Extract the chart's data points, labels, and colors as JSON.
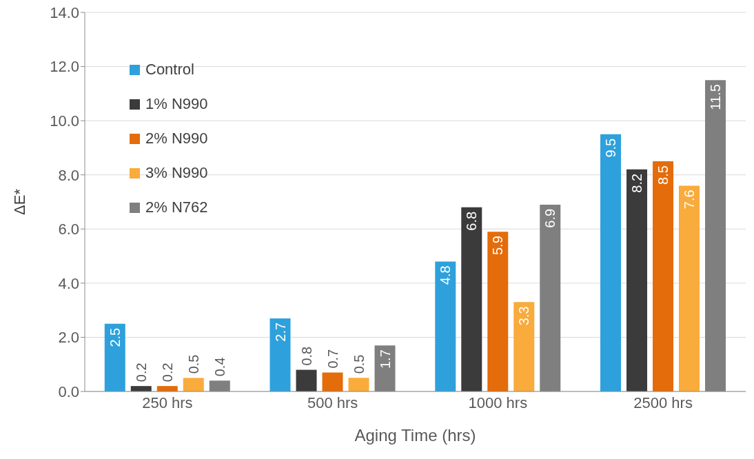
{
  "chart_data": {
    "type": "bar",
    "xlabel": "Aging Time (hrs)",
    "ylabel": "ΔE*",
    "categories": [
      "250 hrs",
      "500 hrs",
      "1000 hrs",
      "2500 hrs"
    ],
    "series": [
      {
        "name": "Control",
        "color": "#2ea1dc",
        "values": [
          2.5,
          2.7,
          4.8,
          9.5
        ]
      },
      {
        "name": "1% N990",
        "color": "#3b3b3b",
        "values": [
          0.2,
          0.8,
          6.8,
          8.2
        ]
      },
      {
        "name": "2% N990",
        "color": "#e46c0a",
        "values": [
          0.2,
          0.7,
          5.9,
          8.5
        ]
      },
      {
        "name": "3% N990",
        "color": "#f9ab3c",
        "values": [
          0.5,
          0.5,
          3.3,
          7.6
        ]
      },
      {
        "name": "2% N762",
        "color": "#7f7f7f",
        "values": [
          0.4,
          1.7,
          6.9,
          11.5
        ]
      }
    ],
    "ylim": [
      0,
      14
    ],
    "yticks": [
      {
        "value": 0,
        "label": "0.0"
      },
      {
        "value": 2,
        "label": "2.0"
      },
      {
        "value": 4,
        "label": "4.0"
      },
      {
        "value": 6,
        "label": "6.0"
      },
      {
        "value": 8,
        "label": "8.0"
      },
      {
        "value": 10,
        "label": "10.0"
      },
      {
        "value": 12,
        "label": "12.0"
      },
      {
        "value": 14,
        "label": "14.0"
      }
    ],
    "grid": "y",
    "legend": "top left",
    "data_labels": true
  }
}
